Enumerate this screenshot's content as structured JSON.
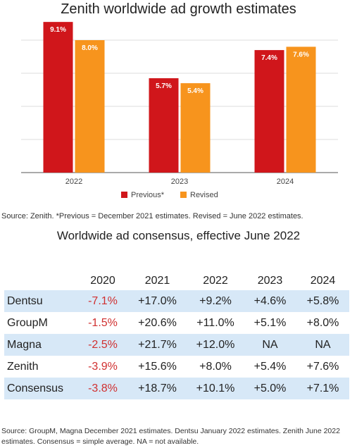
{
  "chart_title": "Zenith worldwide ad growth estimates",
  "chart_data": {
    "type": "bar",
    "title": "Zenith worldwide ad growth estimates",
    "categories": [
      "2022",
      "2023",
      "2024"
    ],
    "series": [
      {
        "name": "Previous*",
        "values": [
          9.1,
          5.7,
          7.4
        ],
        "labels": [
          "9.1%",
          "5.7%",
          "7.4%"
        ],
        "color": "#d0161b"
      },
      {
        "name": "Revised",
        "values": [
          8.0,
          5.4,
          7.6
        ],
        "labels": [
          "8.0%",
          "5.4%",
          "7.6%"
        ],
        "color": "#f7941d"
      }
    ],
    "ylim": [
      0,
      10
    ],
    "grid": true,
    "legend": "bottom"
  },
  "source_note": "Source: Zenith. *Previous = December 2021 estimates. Revised = June 2022 estimates.",
  "table": {
    "title": "Worldwide ad consensus, effective June 2022",
    "headers": [
      "",
      "2020",
      "2021",
      "2022",
      "2023",
      "2024"
    ],
    "rows": [
      {
        "name": "Dentsu",
        "values": [
          "-7.1%",
          "+17.0%",
          "+9.2%",
          "+4.6%",
          "+5.8%"
        ]
      },
      {
        "name": "GroupM",
        "values": [
          "-1.5%",
          "+20.6%",
          "+11.0%",
          "+5.1%",
          "+8.0%"
        ]
      },
      {
        "name": "Magna",
        "values": [
          "-2.5%",
          "+21.7%",
          "+12.0%",
          "NA",
          "NA"
        ]
      },
      {
        "name": "Zenith",
        "values": [
          "-3.9%",
          "+15.6%",
          "+8.0%",
          "+5.4%",
          "+7.6%"
        ]
      },
      {
        "name": "Consensus",
        "values": [
          "-3.8%",
          "+18.7%",
          "+10.1%",
          "+5.0%",
          "+7.1%"
        ]
      }
    ],
    "negative_color": "#d03030",
    "shade_color": "#d7e8f7"
  },
  "footer_source": "Source: GroupM, Magna December 2021 estimates. Dentsu January 2022 estimates. Zenith June 2022 estimates. Consensus = simple average. NA = not available."
}
